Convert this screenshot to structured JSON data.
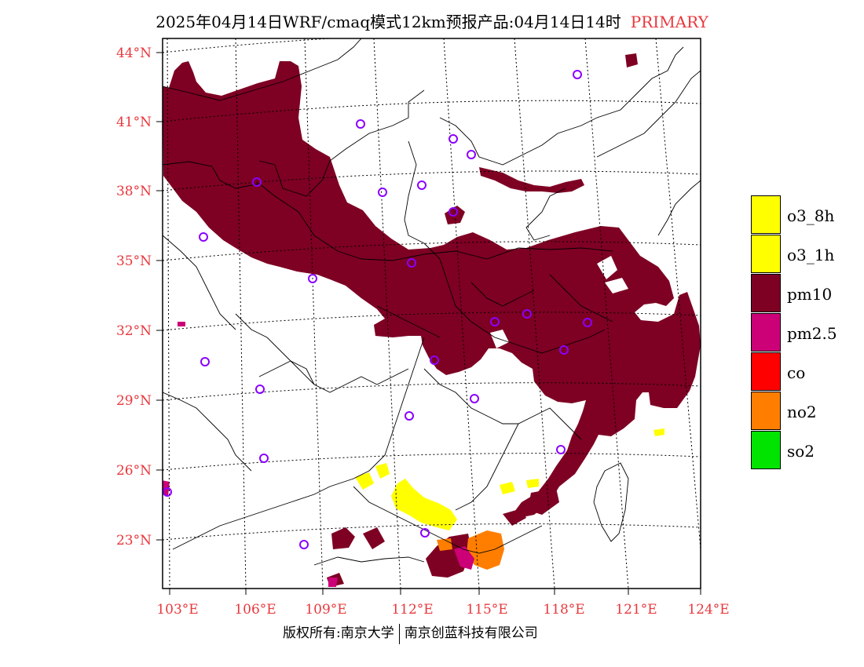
{
  "title": {
    "main": "2025年04月14日WRF/cmaq模式12km预报产品:04月14日14时",
    "tag": "PRIMARY"
  },
  "axes": {
    "lat_labels": [
      "44°N",
      "41°N",
      "38°N",
      "35°N",
      "32°N",
      "29°N",
      "26°N",
      "23°N"
    ],
    "lon_labels": [
      "103°E",
      "106°E",
      "109°E",
      "112°E",
      "115°E",
      "118°E",
      "121°E",
      "124°E"
    ],
    "label_color": "#e8383d"
  },
  "legend": [
    {
      "label": "o3_8h",
      "color": "#ffff00"
    },
    {
      "label": "o3_1h",
      "color": "#ffff00"
    },
    {
      "label": "pm10",
      "color": "#7e0023"
    },
    {
      "label": "pm2.5",
      "color": "#cc0077"
    },
    {
      "label": "co",
      "color": "#ff0000"
    },
    {
      "label": "no2",
      "color": "#ff7e00"
    },
    {
      "label": "so2",
      "color": "#00e400"
    }
  ],
  "copyright": {
    "left": "版权所有:南京大学",
    "right": "南京创蓝科技有限公司"
  },
  "colors": {
    "pm10": "#7e0023",
    "pm25": "#cc0077",
    "o3": "#ffff00",
    "no2": "#ff7e00",
    "station": "#8b00ff"
  }
}
